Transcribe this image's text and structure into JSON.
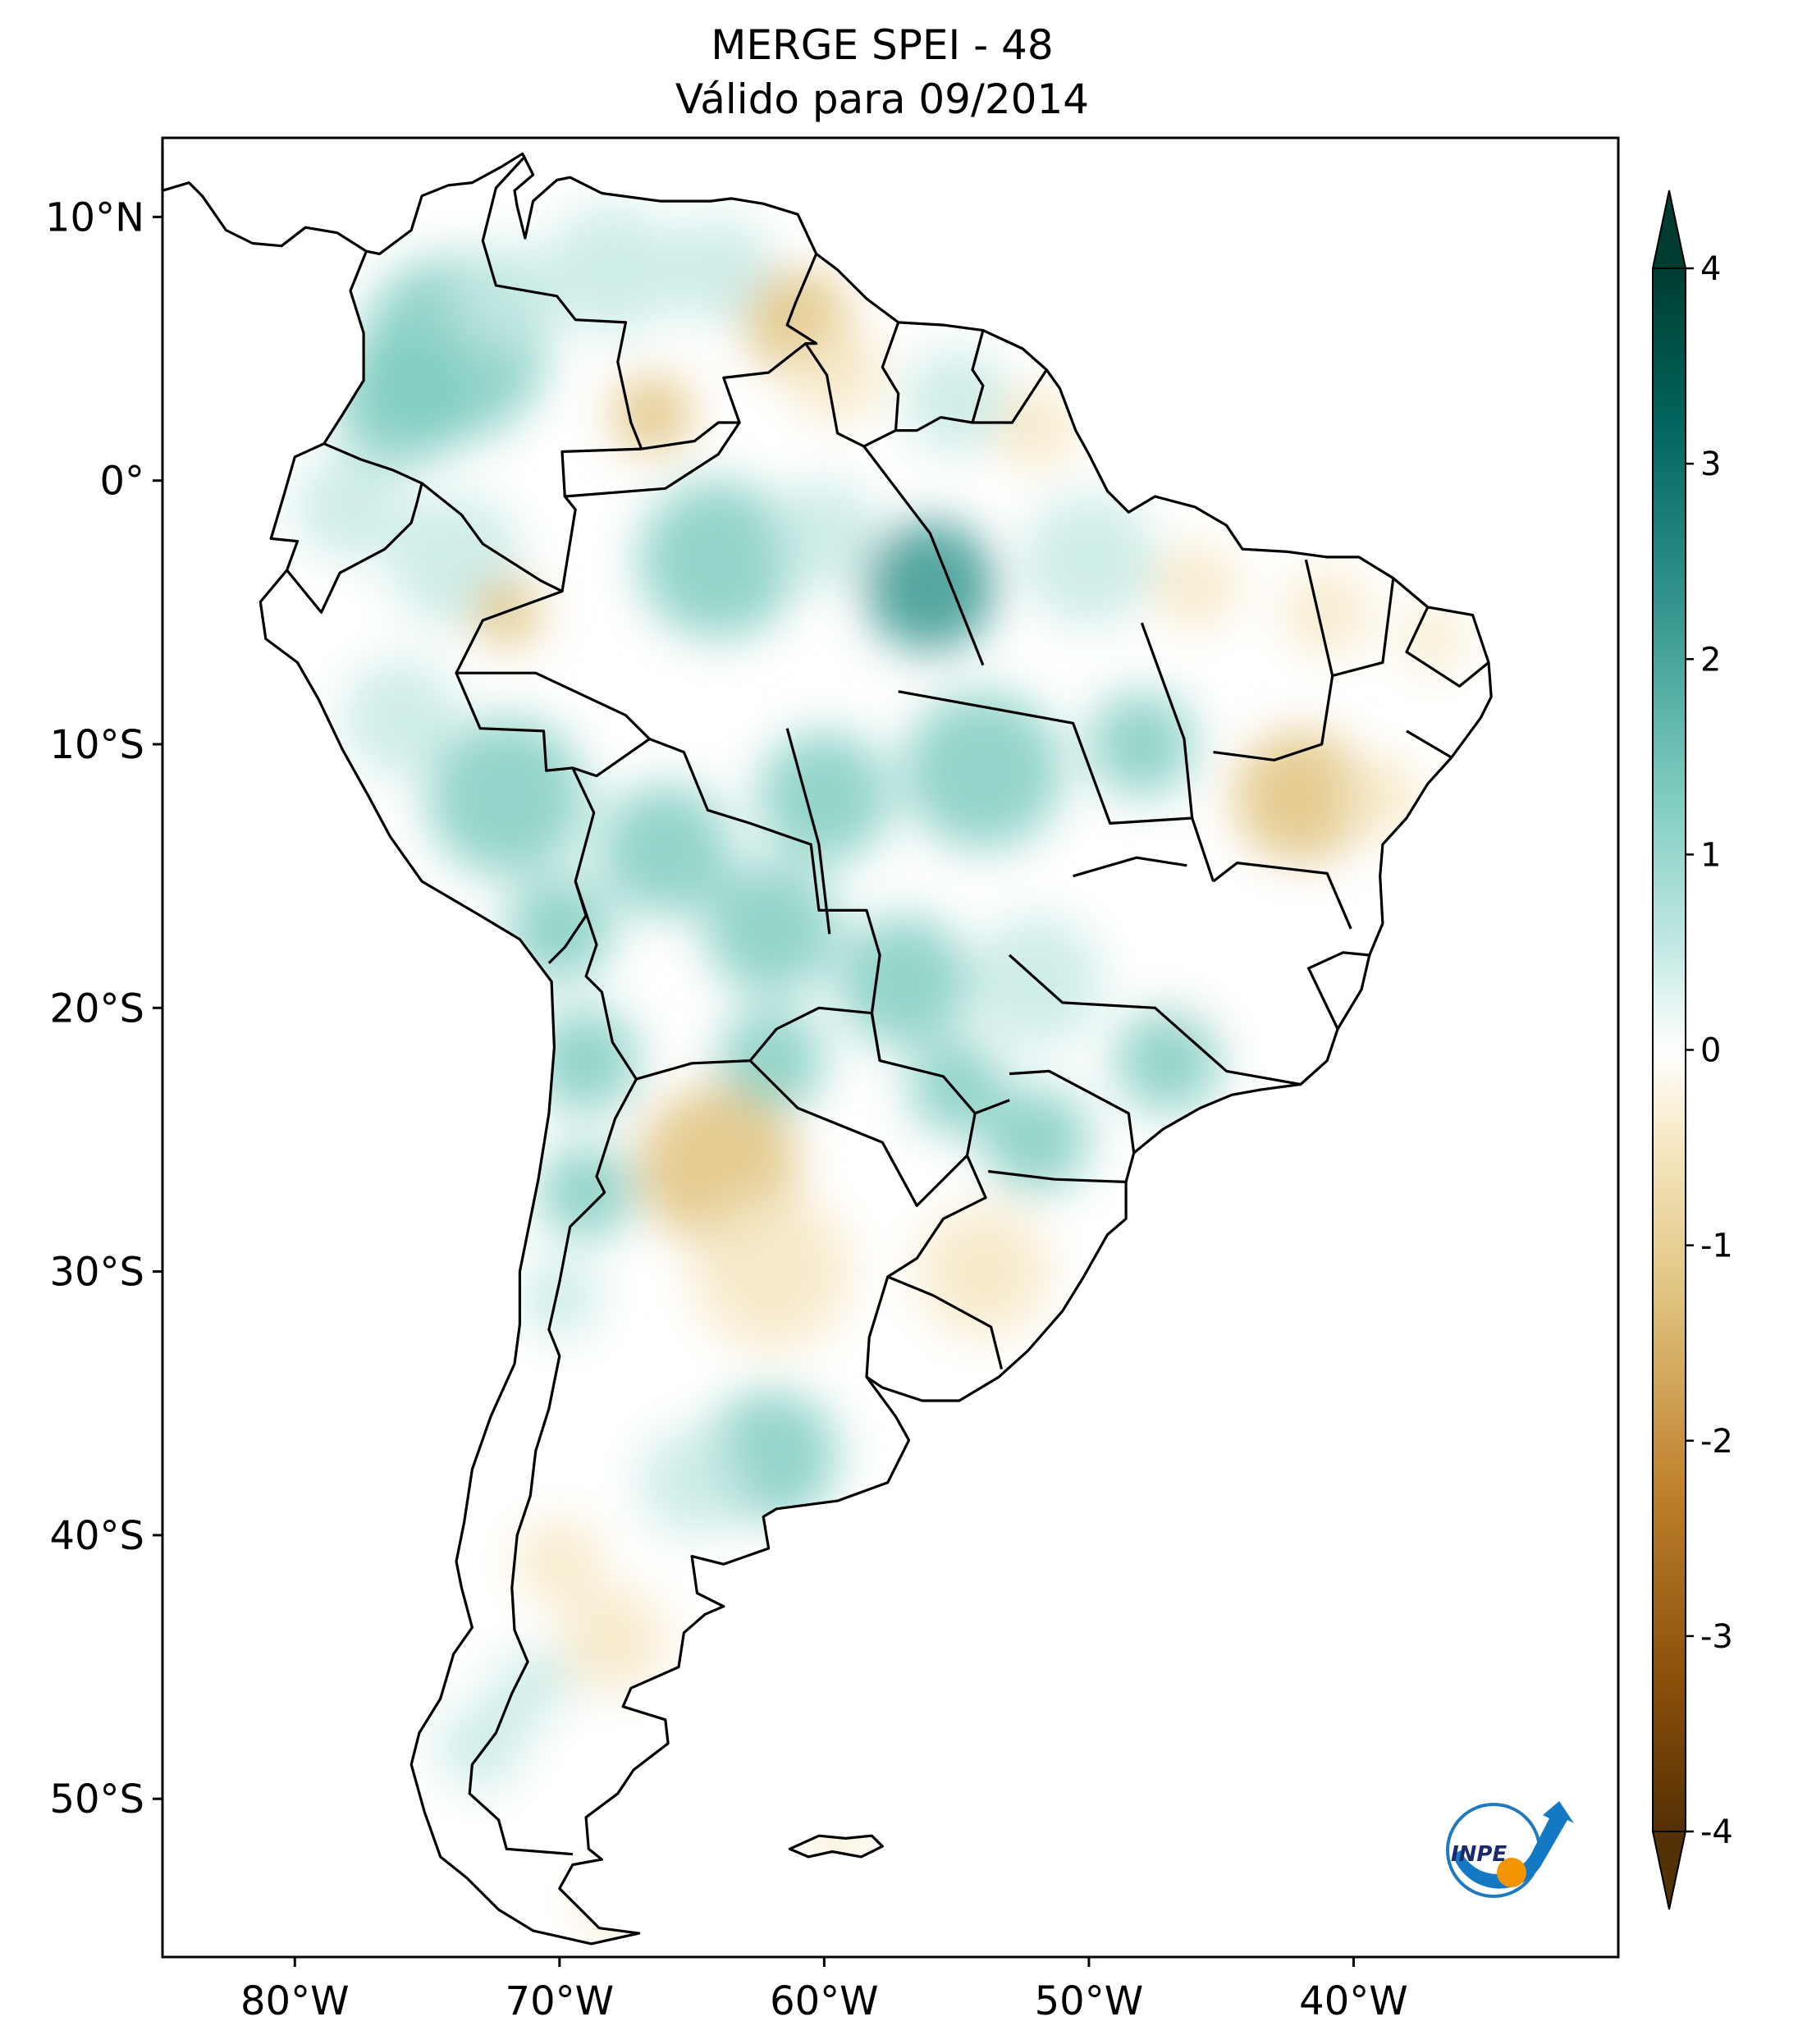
{
  "title_line1": "MERGE   SPEI - 48",
  "title_line2": "Válido para 09/2014",
  "map": {
    "extent": {
      "lon_min": -85,
      "lon_max": -30,
      "lat_min": -56,
      "lat_max": 13
    },
    "lat_ticks": [
      {
        "value": 10,
        "label": "10°N"
      },
      {
        "value": 0,
        "label": "0°"
      },
      {
        "value": -10,
        "label": "10°S"
      },
      {
        "value": -20,
        "label": "20°S"
      },
      {
        "value": -30,
        "label": "30°S"
      },
      {
        "value": -40,
        "label": "40°S"
      },
      {
        "value": -50,
        "label": "50°S"
      }
    ],
    "lon_ticks": [
      {
        "value": -80,
        "label": "80°W"
      },
      {
        "value": -70,
        "label": "70°W"
      },
      {
        "value": -60,
        "label": "60°W"
      },
      {
        "value": -50,
        "label": "50°W"
      },
      {
        "value": -40,
        "label": "40°W"
      }
    ],
    "variable": "SPEI-48",
    "dominant_pattern": {
      "wet_regions": [
        "Colombia",
        "Peru",
        "Bolivia",
        "Amazonas",
        "Pará",
        "Mato Grosso",
        "Paraná",
        "Paraguay"
      ],
      "dry_regions": [
        "Guyana",
        "Suriname",
        "Northeast Brazil",
        "Bahia",
        "Northern Argentina",
        "Patagonia"
      ]
    }
  },
  "colorbar": {
    "min": -4,
    "max": 4,
    "ticks": [
      {
        "value": 4,
        "label": "4"
      },
      {
        "value": 3,
        "label": "3"
      },
      {
        "value": 2,
        "label": "2"
      },
      {
        "value": 1,
        "label": "1"
      },
      {
        "value": 0,
        "label": "0"
      },
      {
        "value": -1,
        "label": "-1"
      },
      {
        "value": -2,
        "label": "-2"
      },
      {
        "value": -3,
        "label": "-3"
      },
      {
        "value": -4,
        "label": "-4"
      }
    ],
    "colormap": "BrBG",
    "colors": [
      "#543005",
      "#8c510a",
      "#bf812d",
      "#dfc27d",
      "#f6e8c3",
      "#ffffff",
      "#c7eae5",
      "#80cdc1",
      "#35978f",
      "#01665e",
      "#003c30"
    ],
    "extend": "both"
  },
  "logo": {
    "text": "INPE",
    "name": "inpe-logo"
  }
}
